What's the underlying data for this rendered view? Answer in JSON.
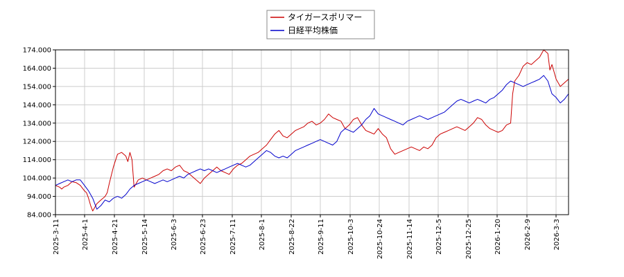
{
  "chart_data": {
    "type": "line",
    "title": "",
    "xlabel": "",
    "ylabel": "",
    "ylim": [
      84,
      174
    ],
    "yticks": [
      "84.000",
      "94.000",
      "104.000",
      "114.000",
      "124.000",
      "134.000",
      "144.000",
      "154.000",
      "164.000",
      "174.000"
    ],
    "xticks": [
      "2025-3-11",
      "2025-4-1",
      "2025-4-21",
      "2025-5-14",
      "2025-6-3",
      "2025-6-23",
      "2025-7-11",
      "2025-8-1",
      "2025-8-22",
      "2025-9-11",
      "2025-10-3",
      "2025-10-24",
      "2025-11-14",
      "2025-12-5",
      "2025-12-25",
      "2026-1-20",
      "2026-2-9",
      "2026-3-3"
    ],
    "grid": true,
    "legend_position": "top-center",
    "series": [
      {
        "name": "タイガースポリマー",
        "color": "#cc0000",
        "points": [
          [
            0,
            100
          ],
          [
            1,
            99
          ],
          [
            1.5,
            98
          ],
          [
            2,
            99
          ],
          [
            3,
            100
          ],
          [
            3.5,
            101
          ],
          [
            4,
            102
          ],
          [
            5,
            101.5
          ],
          [
            6,
            100
          ],
          [
            7,
            97
          ],
          [
            7.5,
            96
          ],
          [
            8,
            93
          ],
          [
            8.5,
            89
          ],
          [
            9,
            86
          ],
          [
            9.5,
            88
          ],
          [
            10,
            90
          ],
          [
            11,
            92
          ],
          [
            11.5,
            93
          ],
          [
            12,
            94
          ],
          [
            12.5,
            96
          ],
          [
            13,
            101
          ],
          [
            14,
            110
          ],
          [
            15,
            117
          ],
          [
            16,
            118
          ],
          [
            16.5,
            117
          ],
          [
            17,
            116
          ],
          [
            17.5,
            113
          ],
          [
            18,
            118
          ],
          [
            18.5,
            114
          ],
          [
            19,
            99
          ],
          [
            20,
            103
          ],
          [
            21,
            104
          ],
          [
            22,
            103
          ],
          [
            23,
            104
          ],
          [
            24,
            105
          ],
          [
            25,
            106
          ],
          [
            26,
            108
          ],
          [
            27,
            109
          ],
          [
            28,
            108
          ],
          [
            29,
            110
          ],
          [
            30,
            111
          ],
          [
            31,
            108
          ],
          [
            32,
            107
          ],
          [
            33,
            105
          ],
          [
            34,
            103
          ],
          [
            35,
            101
          ],
          [
            36,
            104
          ],
          [
            37,
            106
          ],
          [
            38,
            108
          ],
          [
            39,
            110
          ],
          [
            40,
            108
          ],
          [
            41,
            107
          ],
          [
            42,
            106
          ],
          [
            43,
            109
          ],
          [
            44,
            111
          ],
          [
            45,
            112
          ],
          [
            46,
            114
          ],
          [
            47,
            116
          ],
          [
            48,
            117
          ],
          [
            49,
            118
          ],
          [
            50,
            120
          ],
          [
            51,
            122
          ],
          [
            52,
            125
          ],
          [
            53,
            128
          ],
          [
            54,
            130
          ],
          [
            55,
            127
          ],
          [
            56,
            126
          ],
          [
            57,
            128
          ],
          [
            58,
            130
          ],
          [
            59,
            131
          ],
          [
            60,
            132
          ],
          [
            61,
            134
          ],
          [
            62,
            135
          ],
          [
            63,
            133
          ],
          [
            64,
            134
          ],
          [
            65,
            136
          ],
          [
            66,
            139
          ],
          [
            67,
            137
          ],
          [
            68,
            136
          ],
          [
            69,
            135
          ],
          [
            70,
            131
          ],
          [
            71,
            133
          ],
          [
            72,
            136
          ],
          [
            73,
            137
          ],
          [
            74,
            133
          ],
          [
            75,
            130
          ],
          [
            76,
            129
          ],
          [
            77,
            128
          ],
          [
            78,
            131
          ],
          [
            79,
            128
          ],
          [
            80,
            126
          ],
          [
            81,
            120
          ],
          [
            82,
            117
          ],
          [
            83,
            118
          ],
          [
            84,
            119
          ],
          [
            85,
            120
          ],
          [
            86,
            121
          ],
          [
            87,
            120
          ],
          [
            88,
            119
          ],
          [
            89,
            121
          ],
          [
            90,
            120
          ],
          [
            91,
            122
          ],
          [
            92,
            126
          ],
          [
            93,
            128
          ],
          [
            94,
            129
          ],
          [
            95,
            130
          ],
          [
            96,
            131
          ],
          [
            97,
            132
          ],
          [
            98,
            131
          ],
          [
            99,
            130
          ],
          [
            100,
            132
          ],
          [
            101,
            134
          ],
          [
            102,
            137
          ],
          [
            103,
            136
          ],
          [
            104,
            133
          ],
          [
            105,
            131
          ],
          [
            106,
            130
          ],
          [
            107,
            129
          ],
          [
            108,
            130
          ],
          [
            109,
            133
          ],
          [
            110,
            134
          ],
          [
            110.5,
            150
          ],
          [
            111,
            157
          ],
          [
            112,
            160
          ],
          [
            113,
            165
          ],
          [
            114,
            167
          ],
          [
            115,
            166
          ],
          [
            116,
            168
          ],
          [
            117,
            170
          ],
          [
            118,
            174
          ],
          [
            119,
            172
          ],
          [
            119.5,
            163
          ],
          [
            120,
            166
          ],
          [
            121,
            158
          ],
          [
            122,
            154
          ],
          [
            123,
            156
          ],
          [
            124,
            158
          ]
        ]
      },
      {
        "name": "日経平均株価",
        "color": "#0000cc",
        "points": [
          [
            0,
            100
          ],
          [
            1,
            101
          ],
          [
            2,
            102
          ],
          [
            3,
            103
          ],
          [
            4,
            102
          ],
          [
            5,
            103
          ],
          [
            6,
            103
          ],
          [
            7,
            100
          ],
          [
            8,
            97
          ],
          [
            9,
            93
          ],
          [
            10,
            87
          ],
          [
            10.5,
            88
          ],
          [
            11,
            89
          ],
          [
            12,
            92
          ],
          [
            13,
            91
          ],
          [
            14,
            93
          ],
          [
            15,
            94
          ],
          [
            16,
            93
          ],
          [
            17,
            95
          ],
          [
            18,
            98
          ],
          [
            19,
            100
          ],
          [
            20,
            101
          ],
          [
            21,
            102
          ],
          [
            22,
            103
          ],
          [
            23,
            102
          ],
          [
            24,
            101
          ],
          [
            25,
            102
          ],
          [
            26,
            103
          ],
          [
            27,
            102
          ],
          [
            28,
            103
          ],
          [
            29,
            104
          ],
          [
            30,
            105
          ],
          [
            31,
            104
          ],
          [
            32,
            106
          ],
          [
            33,
            107
          ],
          [
            34,
            108
          ],
          [
            35,
            109
          ],
          [
            36,
            108
          ],
          [
            37,
            109
          ],
          [
            38,
            108
          ],
          [
            39,
            107
          ],
          [
            40,
            108
          ],
          [
            41,
            109
          ],
          [
            42,
            110
          ],
          [
            43,
            111
          ],
          [
            44,
            112
          ],
          [
            45,
            111
          ],
          [
            46,
            110
          ],
          [
            47,
            111
          ],
          [
            48,
            113
          ],
          [
            49,
            115
          ],
          [
            50,
            117
          ],
          [
            51,
            119
          ],
          [
            52,
            118
          ],
          [
            53,
            116
          ],
          [
            54,
            115
          ],
          [
            55,
            116
          ],
          [
            56,
            115
          ],
          [
            57,
            117
          ],
          [
            58,
            119
          ],
          [
            59,
            120
          ],
          [
            60,
            121
          ],
          [
            61,
            122
          ],
          [
            62,
            123
          ],
          [
            63,
            124
          ],
          [
            64,
            125
          ],
          [
            65,
            124
          ],
          [
            66,
            123
          ],
          [
            67,
            122
          ],
          [
            68,
            124
          ],
          [
            69,
            129
          ],
          [
            70,
            131
          ],
          [
            71,
            130
          ],
          [
            72,
            129
          ],
          [
            73,
            131
          ],
          [
            74,
            133
          ],
          [
            75,
            136
          ],
          [
            76,
            138
          ],
          [
            77,
            142
          ],
          [
            78,
            139
          ],
          [
            79,
            138
          ],
          [
            80,
            137
          ],
          [
            81,
            136
          ],
          [
            82,
            135
          ],
          [
            83,
            134
          ],
          [
            84,
            133
          ],
          [
            85,
            135
          ],
          [
            86,
            136
          ],
          [
            87,
            137
          ],
          [
            88,
            138
          ],
          [
            89,
            137
          ],
          [
            90,
            136
          ],
          [
            91,
            137
          ],
          [
            92,
            138
          ],
          [
            93,
            139
          ],
          [
            94,
            140
          ],
          [
            95,
            142
          ],
          [
            96,
            144
          ],
          [
            97,
            146
          ],
          [
            98,
            147
          ],
          [
            99,
            146
          ],
          [
            100,
            145
          ],
          [
            101,
            146
          ],
          [
            102,
            147
          ],
          [
            103,
            146
          ],
          [
            104,
            145
          ],
          [
            105,
            147
          ],
          [
            106,
            148
          ],
          [
            107,
            150
          ],
          [
            108,
            152
          ],
          [
            109,
            155
          ],
          [
            110,
            157
          ],
          [
            111,
            156
          ],
          [
            112,
            155
          ],
          [
            113,
            154
          ],
          [
            114,
            155
          ],
          [
            115,
            156
          ],
          [
            116,
            157
          ],
          [
            117,
            158
          ],
          [
            118,
            160
          ],
          [
            119,
            157
          ],
          [
            120,
            150
          ],
          [
            121,
            148
          ],
          [
            122,
            145
          ],
          [
            123,
            147
          ],
          [
            124,
            150
          ]
        ]
      }
    ]
  }
}
